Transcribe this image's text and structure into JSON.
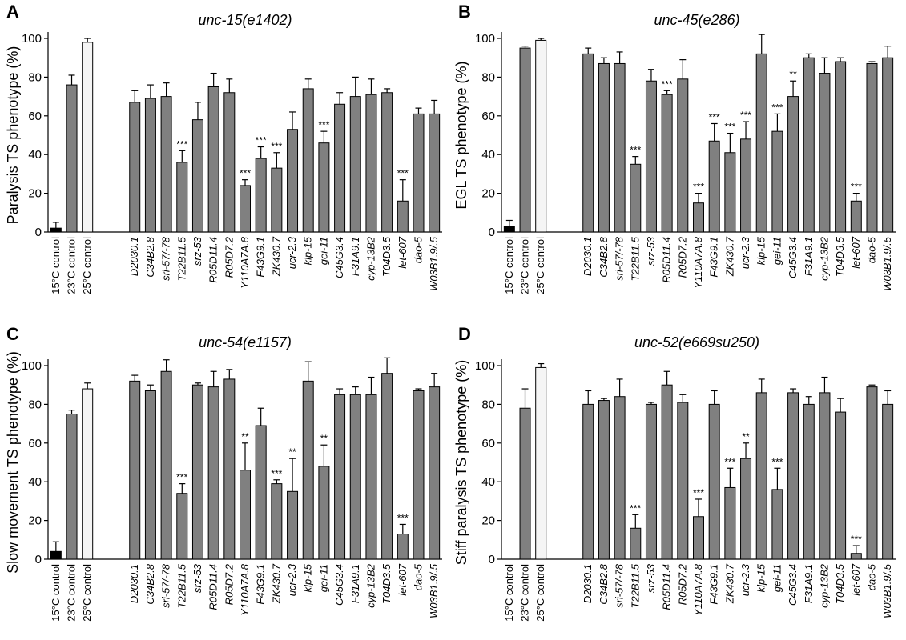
{
  "colors": {
    "cold": "#000000",
    "mid": "#808080",
    "warm": "#f5f5f5",
    "gene": "#808080",
    "stroke": "#000000"
  },
  "chart_data": [
    {
      "panel": "A",
      "type": "bar",
      "title": "unc-15(e1402)",
      "ylabel": "Paralysis TS phenotype (%)",
      "ylim": [
        0,
        100
      ],
      "yticks": [
        "0",
        "20",
        "40",
        "60",
        "80",
        "100"
      ],
      "controls": [
        "15°C control",
        "23°C control",
        "25°C control"
      ],
      "control_values": [
        2,
        76,
        98
      ],
      "control_err": [
        3,
        5,
        2
      ],
      "genes": [
        "D2030.1",
        "C34B2.8",
        "sri-57/-78",
        "T22B11.5",
        "srz-53",
        "R05D11.4",
        "R05D7.2",
        "Y110A7A.8",
        "F43G9.1",
        "ZK430.7",
        "ucr-2.3",
        "klp-15",
        "gei-11",
        "C45G3.4",
        "F31A9.1",
        "cyp-13B2",
        "T04D3.5",
        "let-607",
        "dao-5",
        "W03B1.9/.5"
      ],
      "values": [
        67,
        69,
        70,
        36,
        58,
        75,
        72,
        24,
        38,
        33,
        53,
        74,
        46,
        66,
        70,
        71,
        72,
        16,
        61,
        61
      ],
      "errors": [
        6,
        7,
        7,
        6,
        9,
        7,
        7,
        3,
        6,
        8,
        9,
        5,
        6,
        6,
        10,
        8,
        2,
        11,
        3,
        7
      ],
      "sig": [
        "",
        "",
        "",
        "***",
        "",
        "",
        "",
        "***",
        "***",
        "***",
        "",
        "",
        "***",
        "",
        "",
        "",
        "",
        "***",
        "",
        ""
      ]
    },
    {
      "panel": "B",
      "type": "bar",
      "title": "unc-45(e286)",
      "ylabel": "EGL TS phenotype (%)",
      "ylim": [
        0,
        100
      ],
      "yticks": [
        "0",
        "20",
        "40",
        "60",
        "80",
        "100"
      ],
      "controls": [
        "15°C control",
        "23°C control",
        "25°C control"
      ],
      "control_values": [
        3,
        95,
        99
      ],
      "control_err": [
        3,
        1,
        1
      ],
      "genes": [
        "D2030.1",
        "C34B2.8",
        "sri-57/-78",
        "T22B11.5",
        "srz-53",
        "R05D11.4",
        "R05D7.2",
        "Y110A7A.8",
        "F43G9.1",
        "ZK430.7",
        "ucr-2.3",
        "klp-15",
        "gei-11",
        "C45G3.4",
        "F31A9.1",
        "cyp-13B2",
        "T04D3.5",
        "let-607",
        "dao-5",
        "W03B1.9/.5"
      ],
      "values": [
        92,
        87,
        87,
        35,
        78,
        71,
        79,
        15,
        47,
        41,
        48,
        92,
        52,
        70,
        90,
        82,
        88,
        16,
        87,
        90
      ],
      "errors": [
        3,
        3,
        6,
        4,
        6,
        2,
        10,
        5,
        9,
        10,
        9,
        10,
        9,
        8,
        2,
        8,
        2,
        4,
        1,
        6
      ],
      "sig": [
        "",
        "",
        "",
        "***",
        "",
        "***",
        "",
        "***",
        "***",
        "***",
        "***",
        "",
        "***",
        "**",
        "",
        "",
        "",
        "***",
        "",
        ""
      ]
    },
    {
      "panel": "C",
      "type": "bar",
      "title": "unc-54(e1157)",
      "ylabel": "Slow movement TS phenotype (%)",
      "ylim": [
        0,
        100
      ],
      "yticks": [
        "0",
        "20",
        "40",
        "60",
        "80",
        "100"
      ],
      "controls": [
        "15°C control",
        "23°C control",
        "25°C control"
      ],
      "control_values": [
        4,
        75,
        88
      ],
      "control_err": [
        5,
        2,
        3
      ],
      "genes": [
        "D2030.1",
        "C34B2.8",
        "sri-57/-78",
        "T22B11.5",
        "srz-53",
        "R05D11.4",
        "R05D7.2",
        "Y110A7A.8",
        "F43G9.1",
        "ZK430.7",
        "ucr-2.3",
        "klp-15",
        "gei-11",
        "C45G3.4",
        "F31A9.1",
        "cyp-13B2",
        "T04D3.5",
        "let-607",
        "dao-5",
        "W03B1.9/.5"
      ],
      "values": [
        92,
        87,
        97,
        34,
        90,
        89,
        93,
        46,
        69,
        39,
        35,
        92,
        48,
        85,
        85,
        85,
        96,
        13,
        87,
        89
      ],
      "errors": [
        3,
        3,
        6,
        5,
        1,
        8,
        5,
        14,
        9,
        2,
        17,
        10,
        11,
        3,
        4,
        9,
        8,
        5,
        1,
        7
      ],
      "sig": [
        "",
        "",
        "",
        "***",
        "",
        "",
        "",
        "**",
        "",
        "***",
        "**",
        "",
        "**",
        "",
        "",
        "",
        "",
        "***",
        "",
        ""
      ]
    },
    {
      "panel": "D",
      "type": "bar",
      "title": "unc-52(e669su250)",
      "ylabel": "Stiff paralysis TS phenotype (%)",
      "ylim": [
        0,
        100
      ],
      "yticks": [
        "0",
        "20",
        "40",
        "60",
        "80",
        "100"
      ],
      "controls": [
        "15°C control",
        "23°C control",
        "25°C control"
      ],
      "control_values": [
        0,
        78,
        99
      ],
      "control_err": [
        0,
        10,
        2
      ],
      "genes": [
        "D2030.1",
        "C34B2.8",
        "sri-57/-78",
        "T22B11.5",
        "srz-53",
        "R05D11.4",
        "R05D7.2",
        "Y110A7A.8",
        "F43G9.1",
        "ZK430.7",
        "ucr-2.3",
        "klp-15",
        "gei-11",
        "C45G3.4",
        "F31A9.1",
        "cyp-13B2",
        "T04D3.5",
        "let-607",
        "dao-5",
        "W03B1.9/.5"
      ],
      "values": [
        80,
        82,
        84,
        16,
        80,
        90,
        81,
        22,
        80,
        37,
        52,
        86,
        36,
        86,
        80,
        86,
        76,
        3,
        89,
        80
      ],
      "errors": [
        7,
        1,
        9,
        7,
        1,
        7,
        4,
        9,
        7,
        10,
        8,
        7,
        11,
        2,
        4,
        8,
        7,
        4,
        1,
        7
      ],
      "sig": [
        "",
        "",
        "",
        "***",
        "",
        "",
        "",
        "***",
        "",
        "***",
        "**",
        "",
        "***",
        "",
        "",
        "",
        "",
        "***",
        "",
        ""
      ]
    }
  ]
}
